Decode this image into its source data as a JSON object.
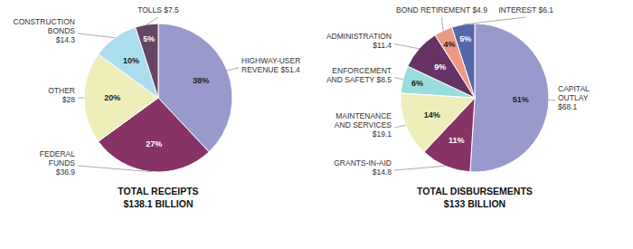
{
  "chart_data": [
    {
      "type": "pie",
      "title": "TOTAL RECEIPTS",
      "subtitle": "$138.1 BILLION",
      "categories": [
        "HIGHWAY-USER\nREVENUE $51.4",
        "FEDERAL\nFUNDS\n$36.9",
        "OTHER\n$28",
        "CONSTRUCTION\nBONDS\n$14.3",
        "TOLLS $7.5"
      ],
      "values": [
        38,
        27,
        20,
        10,
        5
      ],
      "value_labels": [
        "38%",
        "27%",
        "20%",
        "10%",
        "5%"
      ],
      "colors": [
        "#9999cc",
        "#883366",
        "#eeeebb",
        "#aaddee",
        "#664466"
      ],
      "data_labels": true
    },
    {
      "type": "pie",
      "title": "TOTAL DISBURSEMENTS",
      "subtitle": "$133 BILLION",
      "categories": [
        "CAPITAL\nOUTLAY\n$68.1",
        "GRANTS-IN-AID\n$14.8",
        "MAINTENANCE\nAND SERVICES\n$19.1",
        "ENFORCEMENT\nAND SAFETY $8.5",
        "ADMINISTRATION\n$11.4",
        "BOND RETIREMENT $4.9",
        "INTEREST $6.1"
      ],
      "values": [
        51,
        11,
        14,
        6,
        9,
        4,
        5
      ],
      "value_labels": [
        "51%",
        "11%",
        "14%",
        "6%",
        "9%",
        "4%",
        "5%"
      ],
      "colors": [
        "#9999cc",
        "#883366",
        "#eeeebb",
        "#99dddd",
        "#663366",
        "#ee9988",
        "#5566aa"
      ],
      "data_labels": true
    }
  ]
}
